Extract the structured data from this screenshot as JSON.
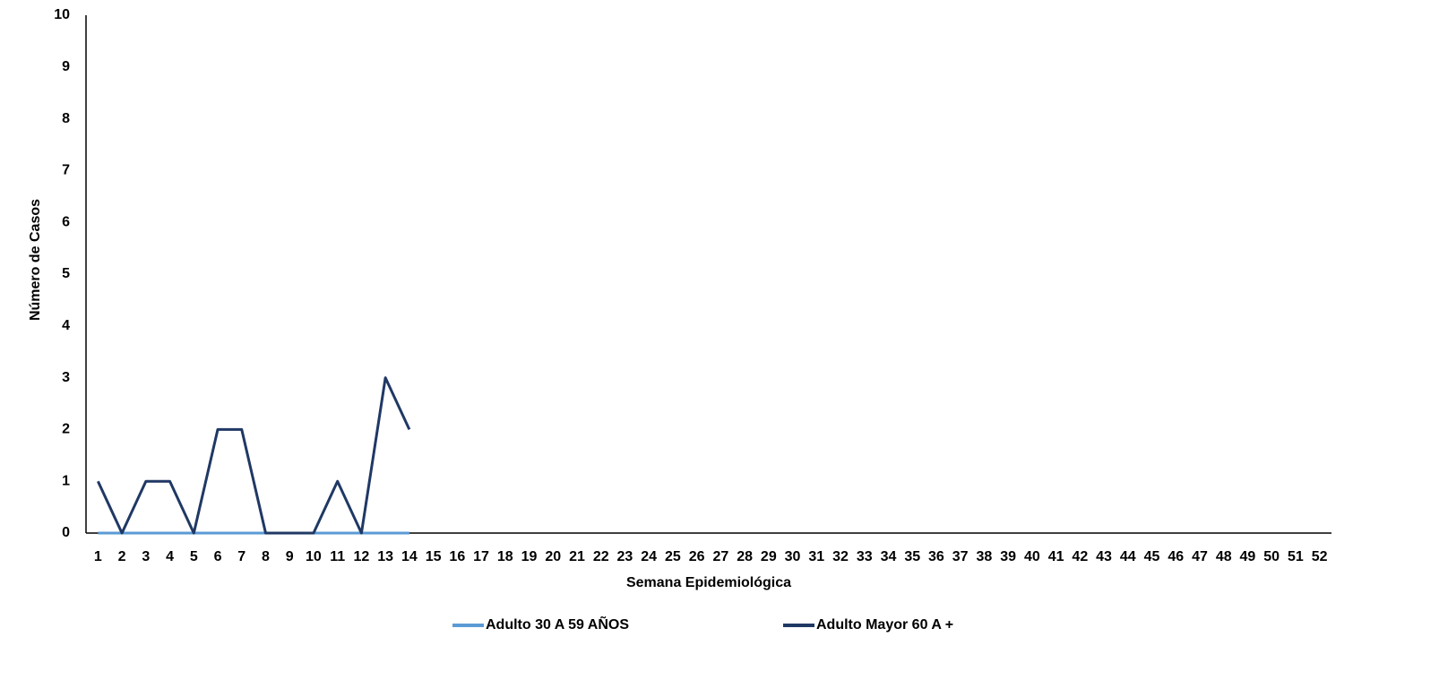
{
  "chart_data": {
    "type": "line",
    "y_label": "Número de Casos",
    "x_label": "Semana Epidemiológica",
    "categories": [
      "1",
      "2",
      "3",
      "4",
      "5",
      "6",
      "7",
      "8",
      "9",
      "10",
      "11",
      "12",
      "13",
      "14",
      "15",
      "16",
      "17",
      "18",
      "19",
      "20",
      "21",
      "22",
      "23",
      "24",
      "25",
      "26",
      "27",
      "28",
      "29",
      "30",
      "31",
      "32",
      "33",
      "34",
      "35",
      "36",
      "37",
      "38",
      "39",
      "40",
      "41",
      "42",
      "43",
      "44",
      "45",
      "46",
      "47",
      "48",
      "49",
      "50",
      "51",
      "52"
    ],
    "series": [
      {
        "name": "Adulto 30 A 59 AÑOS",
        "color": "#5b9bd5",
        "values": [
          0,
          0,
          0,
          0,
          0,
          0,
          0,
          0,
          0,
          0,
          0,
          0,
          0,
          0,
          null,
          null,
          null,
          null,
          null,
          null,
          null,
          null,
          null,
          null,
          null,
          null,
          null,
          null,
          null,
          null,
          null,
          null,
          null,
          null,
          null,
          null,
          null,
          null,
          null,
          null,
          null,
          null,
          null,
          null,
          null,
          null,
          null,
          null,
          null,
          null,
          null,
          null
        ]
      },
      {
        "name": "Adulto Mayor 60 A +",
        "color": "#203864",
        "values": [
          1,
          0,
          1,
          1,
          0,
          2,
          2,
          0,
          0,
          0,
          1,
          0,
          3,
          2,
          null,
          null,
          null,
          null,
          null,
          null,
          null,
          null,
          null,
          null,
          null,
          null,
          null,
          null,
          null,
          null,
          null,
          null,
          null,
          null,
          null,
          null,
          null,
          null,
          null,
          null,
          null,
          null,
          null,
          null,
          null,
          null,
          null,
          null,
          null,
          null,
          null,
          null
        ]
      }
    ],
    "ylim": [
      0,
      10
    ],
    "yticks": [
      0,
      1,
      2,
      3,
      4,
      5,
      6,
      7,
      8,
      9,
      10
    ],
    "grid": false,
    "legend": "bottom"
  }
}
